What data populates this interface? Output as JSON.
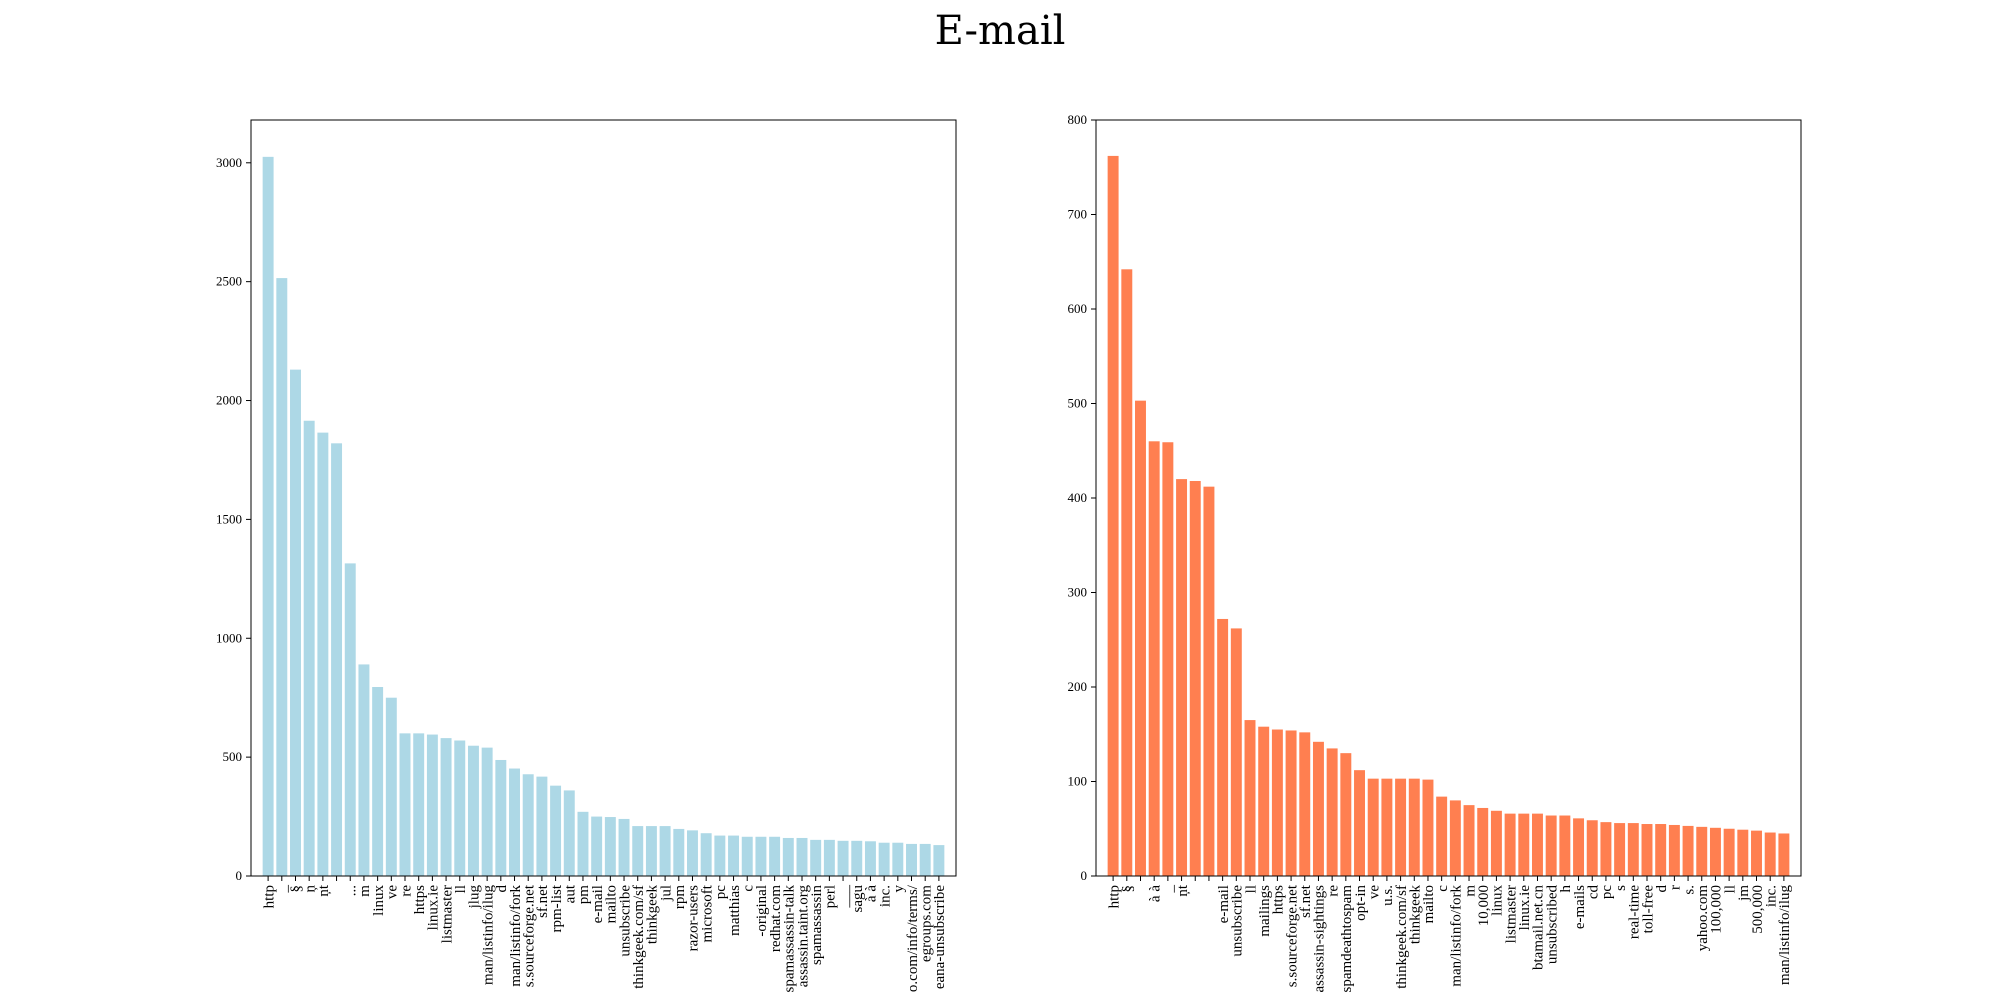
{
  "title": "E-mail",
  "chart_data": [
    {
      "type": "bar",
      "color": "#add8e6",
      "ylim": [
        0,
        3180
      ],
      "yticks": [
        0,
        500,
        1000,
        1500,
        2000,
        2500,
        3000
      ],
      "grid": false,
      "categories": [
        "http",
        "_",
        "§",
        "ņ",
        "ņt",
        "",
        "...",
        "m",
        "linux",
        "ve",
        "re",
        "https",
        "linux.ie",
        "listmaster",
        "ll",
        "jlug",
        "man/listinfo/ilug",
        "d",
        "man/listinfo/fork",
        "s.sourceforge.net",
        "sf.net",
        "rpm-list",
        "aut",
        "pm",
        "e-mail",
        "mailto",
        "unsubscribe",
        "thinkgeek.com/sf",
        "thinkgeek",
        "jul",
        "rpm",
        "razor-users",
        "microsoft",
        "pc",
        "matthias",
        "c",
        "-original",
        "redhat.com",
        "spamassassin-talk",
        "assassin.taint.org",
        "spamassassin",
        "perl",
        "___",
        "sagu",
        "à à",
        "inc.",
        "y",
        "o.com/info/terms/",
        "egroups.com",
        "eana-unsubscribe"
      ],
      "values": [
        3025,
        2515,
        2130,
        1915,
        1865,
        1820,
        1315,
        890,
        795,
        750,
        600,
        600,
        595,
        580,
        570,
        548,
        540,
        488,
        452,
        428,
        418,
        380,
        360,
        270,
        250,
        248,
        240,
        210,
        210,
        210,
        198,
        192,
        180,
        170,
        170,
        165,
        165,
        165,
        160,
        160,
        152,
        152,
        148,
        148,
        146,
        140,
        140,
        135,
        135,
        130
      ]
    },
    {
      "type": "bar",
      "color": "#ff7f50",
      "ylim": [
        0,
        800
      ],
      "yticks": [
        0,
        100,
        200,
        300,
        400,
        500,
        600,
        700,
        800
      ],
      "grid": false,
      "categories": [
        "http",
        "§",
        "",
        "à à",
        "_",
        "ņt",
        "",
        "",
        "e-mail",
        "unsubscribe",
        "ll",
        "mailings",
        "https",
        "s.sourceforge.net",
        "sf.net",
        "assassin-sightings",
        "re",
        "spamdeathtospam",
        "opt-in",
        "ve",
        "u.s.",
        "thinkgeek.com/sf",
        "thinkgeek",
        "mailto",
        "c",
        "man/listinfo/fork",
        "m",
        "10,000",
        "linux",
        "listmaster",
        "linux.ie",
        "btamail.net.cn",
        "unsubscribed",
        "h",
        "e-mails",
        "cd",
        "pc",
        "s",
        "real-time",
        "toll-free",
        "d",
        "r",
        "s.",
        "yahoo.com",
        "100,000",
        "ll",
        "jm",
        "500,000",
        "inc.",
        "man/listinfo/ilug"
      ],
      "values": [
        762,
        642,
        503,
        460,
        459,
        420,
        418,
        412,
        272,
        262,
        165,
        158,
        155,
        154,
        152,
        142,
        135,
        130,
        112,
        103,
        103,
        103,
        103,
        102,
        84,
        80,
        75,
        72,
        69,
        66,
        66,
        66,
        64,
        64,
        61,
        59,
        57,
        56,
        56,
        55,
        55,
        54,
        53,
        52,
        51,
        50,
        49,
        48,
        46,
        45
      ]
    }
  ]
}
